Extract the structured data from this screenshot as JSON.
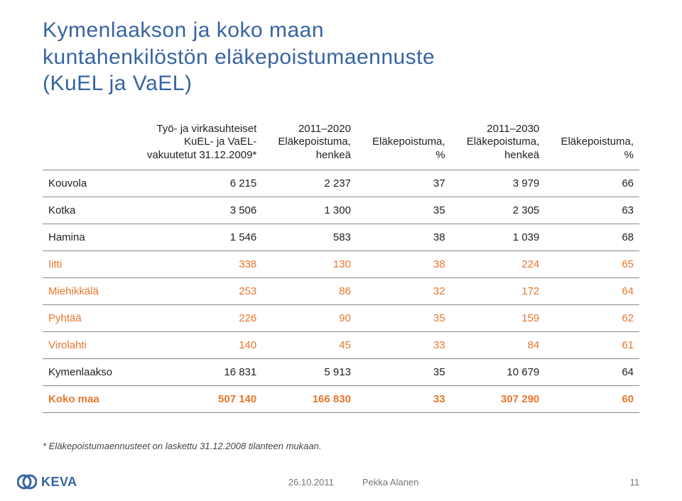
{
  "title_line1": "Kymenlaakson ja koko maan",
  "title_line2": "kuntahenkilöstön eläkepoistumaennuste",
  "title_line3": "(KuEL ja VaEL)",
  "title_color": "#3764a2",
  "title_fontsize": 30,
  "table": {
    "headers": [
      "Työ- ja virkasuhteiset\nKuEL- ja VaEL-\nvakuutetut 31.12.2009*",
      "2011–2020\nEläkepoistuma,\nhenkeä",
      "Eläkepoistuma,\n%",
      "2011–2030\nEläkepoistuma,\nhenkeä",
      "Eläkepoistuma,\n%"
    ],
    "rows": [
      {
        "label": "Kouvola",
        "vals": [
          "6 215",
          "2 237",
          "37",
          "3 979",
          "66"
        ],
        "highlight": false,
        "bold": false
      },
      {
        "label": "Kotka",
        "vals": [
          "3 506",
          "1 300",
          "35",
          "2 305",
          "63"
        ],
        "highlight": false,
        "bold": false
      },
      {
        "label": "Hamina",
        "vals": [
          "1 546",
          "583",
          "38",
          "1 039",
          "68"
        ],
        "highlight": false,
        "bold": false
      },
      {
        "label": "Iitti",
        "vals": [
          "338",
          "130",
          "38",
          "224",
          "65"
        ],
        "highlight": true,
        "bold": false
      },
      {
        "label": "Miehikkälä",
        "vals": [
          "253",
          "86",
          "32",
          "172",
          "64"
        ],
        "highlight": true,
        "bold": false
      },
      {
        "label": "Pyhtää",
        "vals": [
          "226",
          "90",
          "35",
          "159",
          "62"
        ],
        "highlight": true,
        "bold": false
      },
      {
        "label": "Virolahti",
        "vals": [
          "140",
          "45",
          "33",
          "84",
          "61"
        ],
        "highlight": true,
        "bold": false
      },
      {
        "label": "Kymenlaakso",
        "vals": [
          "16 831",
          "5 913",
          "35",
          "10 679",
          "64"
        ],
        "highlight": false,
        "bold": false
      },
      {
        "label": "Koko maa",
        "vals": [
          "507 140",
          "166 830",
          "33",
          "307 290",
          "60"
        ],
        "highlight": true,
        "bold": true
      }
    ],
    "highlight_color": "#e8762d",
    "text_color": "#222222",
    "rule_color": "#888888",
    "fontsize": 15,
    "col_align": [
      "left",
      "right",
      "right",
      "right",
      "right",
      "right"
    ]
  },
  "footnote": "* Eläkepoistumaennusteet on laskettu 31.12.2008 tilanteen mukaan.",
  "footer": {
    "logo_text": "KEVA",
    "logo_color": "#3764a2",
    "date": "26.10.2011",
    "author": "Pekka Alanen",
    "page": "11"
  },
  "background_color": "#ffffff"
}
